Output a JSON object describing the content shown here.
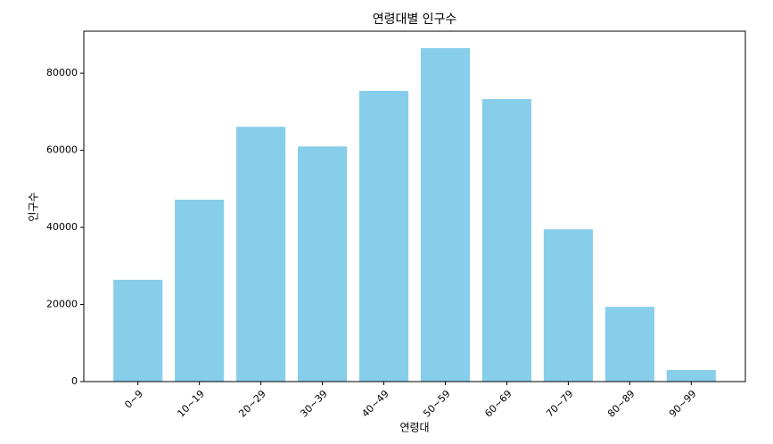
{
  "chart_data": {
    "type": "bar",
    "title": "연령대별 인구수",
    "x_label": "연령대",
    "y_label": "인구수",
    "categories": [
      "0~9",
      "10~19",
      "20~29",
      "30~39",
      "40~49",
      "50~59",
      "60~69",
      "70~79",
      "80~89",
      "90~99"
    ],
    "values": [
      26400,
      47200,
      66100,
      61000,
      75400,
      86500,
      73300,
      39500,
      19400,
      3000
    ],
    "color": "#87ceeb",
    "ylim": [
      0,
      90900
    ],
    "yticks": [
      0,
      20000,
      40000,
      60000,
      80000
    ],
    "grid": false
  }
}
